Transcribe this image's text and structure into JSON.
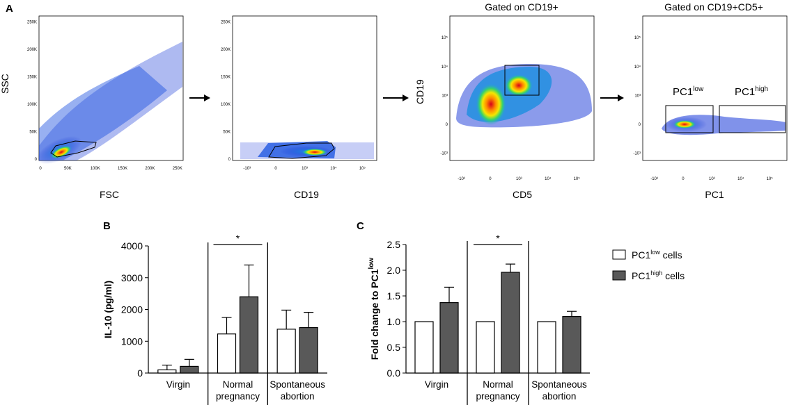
{
  "panels": {
    "A": {
      "letter": "A"
    },
    "B": {
      "letter": "B"
    },
    "C": {
      "letter": "C"
    }
  },
  "flow": {
    "plot1": {
      "xlabel": "FSC",
      "ylabel": "SSC",
      "xticks": [
        "0",
        "50K",
        "100K",
        "150K",
        "200K",
        "250K"
      ],
      "yticks": [
        "0",
        "50K",
        "100K",
        "150K",
        "200K",
        "250K"
      ]
    },
    "plot2": {
      "xlabel": "CD19",
      "xticks": [
        "-10³",
        "0",
        "10³",
        "10⁴",
        "10⁵"
      ],
      "yticks": [
        "0",
        "50K",
        "100K",
        "150K",
        "200K",
        "250K"
      ]
    },
    "plot3": {
      "title": "Gated on CD19+",
      "xlabel": "CD5",
      "ylabel": "CD19",
      "xticks": [
        "-10³",
        "0",
        "10³",
        "10⁴",
        "10⁵"
      ],
      "yticks": [
        "-10³",
        "0",
        "10³",
        "10⁴",
        "10⁵"
      ]
    },
    "plot4": {
      "title": "Gated on CD19+CD5+",
      "xlabel": "PC1",
      "xticks": [
        "-10³",
        "0",
        "10³",
        "10⁴",
        "10⁵"
      ],
      "yticks": [
        "-10³",
        "0",
        "10³",
        "10⁴",
        "10⁵"
      ],
      "gate_low": {
        "base": "PC1",
        "sup": "low"
      },
      "gate_high": {
        "base": "PC1",
        "sup": "high"
      }
    }
  },
  "legend": {
    "low": {
      "base": "PC1",
      "sup": "low",
      "suffix": " cells",
      "color": "#ffffff"
    },
    "high": {
      "base": "PC1",
      "sup": "high",
      "suffix": " cells",
      "color": "#595959"
    }
  },
  "chart_data": [
    {
      "type": "bar",
      "panel": "B",
      "ylabel": "IL-10 (pg/ml)",
      "ylim": [
        0,
        4000
      ],
      "yticks": [
        0,
        1000,
        2000,
        3000,
        4000
      ],
      "groups": [
        {
          "label_lines": [
            "Virgin"
          ]
        },
        {
          "label_lines": [
            "Normal",
            "pregnancy"
          ]
        },
        {
          "label_lines": [
            "Spontaneous",
            "abortion"
          ]
        }
      ],
      "series": [
        {
          "name": "PC1low cells",
          "values": [
            100,
            1230,
            1380
          ],
          "errors": [
            150,
            520,
            600
          ]
        },
        {
          "name": "PC1high cells",
          "values": [
            210,
            2400,
            1430
          ],
          "errors": [
            220,
            1000,
            480
          ]
        }
      ],
      "significance": {
        "group": 1,
        "label": "*"
      }
    },
    {
      "type": "bar",
      "panel": "C",
      "ylabel": {
        "base": "Fold change to PC1",
        "sup": "low"
      },
      "ylim": [
        0,
        2.5
      ],
      "yticks": [
        "0.0",
        "0.5",
        "1.0",
        "1.5",
        "2.0",
        "2.5"
      ],
      "groups": [
        {
          "label_lines": [
            "Virgin"
          ]
        },
        {
          "label_lines": [
            "Normal",
            "pregnancy"
          ]
        },
        {
          "label_lines": [
            "Spontaneous",
            "abortion"
          ]
        }
      ],
      "series": [
        {
          "name": "PC1low cells",
          "values": [
            1.0,
            1.0,
            1.0
          ],
          "errors": [
            0,
            0,
            0
          ]
        },
        {
          "name": "PC1high cells",
          "values": [
            1.37,
            1.96,
            1.1
          ],
          "errors": [
            0.3,
            0.16,
            0.1
          ]
        }
      ],
      "significance": {
        "group": 1,
        "label": "*"
      }
    }
  ]
}
